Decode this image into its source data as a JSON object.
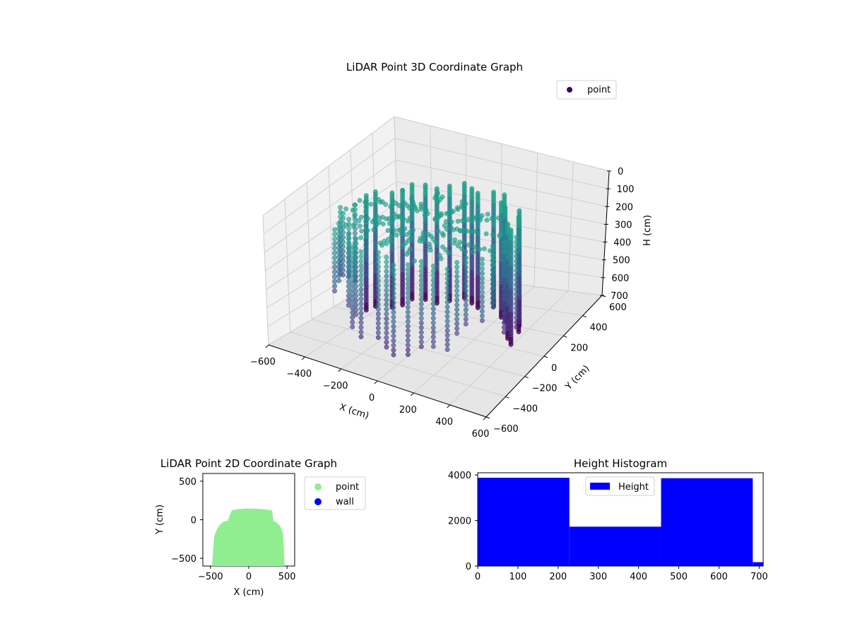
{
  "chart_data": [
    {
      "type": "scatter3d",
      "title": "LiDAR Point 3D Coordinate Graph",
      "xlabel": "X (cm)",
      "ylabel": "Y (cm)",
      "zlabel": "H (cm)",
      "xlim": [
        -600,
        600
      ],
      "ylim": [
        -600,
        600
      ],
      "zlim": [
        0,
        700
      ],
      "z_inverted": true,
      "x_ticks": [
        "−600",
        "−400",
        "−200",
        "0",
        "200",
        "400",
        "600"
      ],
      "y_ticks": [
        "−600",
        "−400",
        "−200",
        "0",
        "200",
        "400",
        "600"
      ],
      "z_ticks": [
        "0",
        "100",
        "200",
        "300",
        "400",
        "500",
        "600",
        "700"
      ],
      "legend": {
        "placement": "top-right",
        "entries": [
          {
            "label": "point",
            "color": "#440154"
          }
        ]
      },
      "colormap": "viridis",
      "grid": true,
      "series": [
        {
          "name": "point",
          "shape": "ring of vertical scan lines, radius ~450 cm, heights 0–700 cm, dense rear wall, open front"
        }
      ]
    },
    {
      "type": "scatter",
      "title": "LiDAR Point 2D Coordinate Graph",
      "xlabel": "X (cm)",
      "ylabel": "Y (cm)",
      "xlim": [
        -600,
        600
      ],
      "ylim": [
        -600,
        600
      ],
      "x_ticks": [
        "−500",
        "0",
        "500"
      ],
      "y_ticks": [
        "−500",
        "0",
        "500"
      ],
      "legend": {
        "placement": "outside right",
        "entries": [
          {
            "label": "point",
            "color": "#90ee90"
          },
          {
            "label": "wall",
            "color": "#0000ff"
          }
        ]
      },
      "series": [
        {
          "name": "point",
          "color": "#90ee90",
          "region": {
            "x": [
              -480,
              470
            ],
            "y": [
              -600,
              150
            ]
          }
        },
        {
          "name": "wall",
          "color": "#0000ff",
          "values": []
        }
      ]
    },
    {
      "type": "bar",
      "title": "Height Histogram",
      "xlabel": "",
      "ylabel": "",
      "xlim": [
        0,
        710
      ],
      "ylim": [
        0,
        4100
      ],
      "x_ticks": [
        "0",
        "100",
        "200",
        "300",
        "400",
        "500",
        "600",
        "700"
      ],
      "y_ticks": [
        "0",
        "2000",
        "4000"
      ],
      "legend": {
        "placement": "top-center",
        "entries": [
          {
            "label": "Height",
            "color": "#0000ff"
          }
        ]
      },
      "series": [
        {
          "name": "Height",
          "color": "#0000ff",
          "bins": [
            {
              "x0": 0,
              "x1": 228,
              "count": 3880
            },
            {
              "x0": 228,
              "x1": 456,
              "count": 1730
            },
            {
              "x0": 456,
              "x1": 684,
              "count": 3860
            },
            {
              "x0": 684,
              "x1": 710,
              "count": 170
            }
          ]
        }
      ]
    }
  ]
}
